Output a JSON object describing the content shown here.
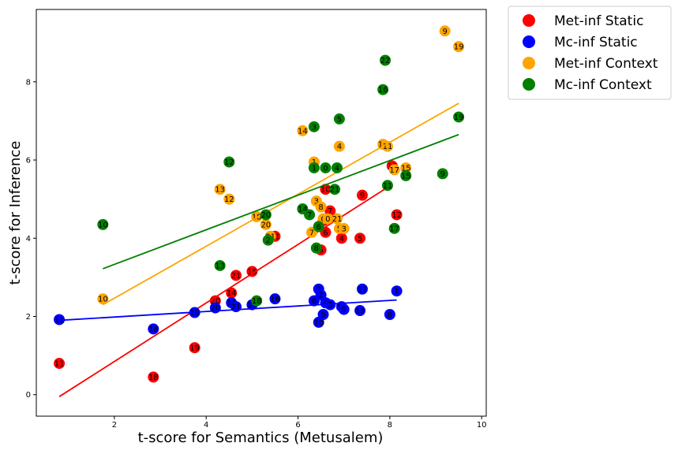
{
  "chart_data": {
    "type": "scatter",
    "xlabel": "t-score for Semantics (Metusalem)",
    "ylabel": "t-score for Inference",
    "xlim": [
      0.3,
      10.1
    ],
    "ylim": [
      -0.55,
      9.85
    ],
    "xticks": [
      2,
      4,
      6,
      8,
      10
    ],
    "yticks": [
      0,
      2,
      4,
      6,
      8
    ],
    "grid": false,
    "legend": "outside-top-right",
    "series": [
      {
        "name": "Met-inf Static",
        "color": "#ff0000",
        "points": [
          {
            "label": "11",
            "x": 0.8,
            "y": 0.8
          },
          {
            "label": "18",
            "x": 2.85,
            "y": 0.45
          },
          {
            "label": "19",
            "x": 3.75,
            "y": 1.2
          },
          {
            "label": "20",
            "x": 4.2,
            "y": 2.4
          },
          {
            "label": "14",
            "x": 4.55,
            "y": 2.6
          },
          {
            "label": "21",
            "x": 4.65,
            "y": 3.05
          },
          {
            "label": "15",
            "x": 5.0,
            "y": 3.15
          },
          {
            "label": "21",
            "x": 5.5,
            "y": 4.05
          },
          {
            "label": "6",
            "x": 6.5,
            "y": 3.7
          },
          {
            "label": "6",
            "x": 6.6,
            "y": 4.15
          },
          {
            "label": "7",
            "x": 6.7,
            "y": 4.7
          },
          {
            "label": "2",
            "x": 6.55,
            "y": 4.45
          },
          {
            "label": "4",
            "x": 6.95,
            "y": 4.0
          },
          {
            "label": "5",
            "x": 7.35,
            "y": 4.0
          },
          {
            "label": "9",
            "x": 7.4,
            "y": 5.1
          },
          {
            "label": "10",
            "x": 6.6,
            "y": 5.25
          },
          {
            "label": "16",
            "x": 8.05,
            "y": 5.85
          },
          {
            "label": "12",
            "x": 8.15,
            "y": 4.6
          }
        ],
        "trend": [
          [
            0.8,
            -0.05
          ],
          [
            7.95,
            5.3
          ]
        ]
      },
      {
        "name": "Mc-inf Static",
        "color": "#0000ff",
        "points": [
          {
            "label": "11",
            "x": 0.8,
            "y": 1.92
          },
          {
            "label": "18",
            "x": 2.85,
            "y": 1.68
          },
          {
            "label": "19",
            "x": 3.75,
            "y": 2.1
          },
          {
            "label": "20",
            "x": 4.2,
            "y": 2.22
          },
          {
            "label": "14",
            "x": 4.55,
            "y": 2.35
          },
          {
            "label": "21",
            "x": 4.65,
            "y": 2.25
          },
          {
            "label": "15",
            "x": 5.0,
            "y": 2.3
          },
          {
            "label": "16",
            "x": 5.5,
            "y": 2.45
          },
          {
            "label": "6",
            "x": 6.35,
            "y": 2.4
          },
          {
            "label": "7",
            "x": 6.45,
            "y": 2.7
          },
          {
            "label": "2",
            "x": 6.5,
            "y": 2.55
          },
          {
            "label": "4",
            "x": 6.6,
            "y": 2.35
          },
          {
            "label": "3",
            "x": 6.7,
            "y": 2.3
          },
          {
            "label": "5",
            "x": 6.55,
            "y": 2.05
          },
          {
            "label": "10",
            "x": 6.45,
            "y": 1.85
          },
          {
            "label": "12",
            "x": 6.95,
            "y": 2.25
          },
          {
            "label": "9",
            "x": 7.0,
            "y": 2.18
          },
          {
            "label": "13",
            "x": 7.35,
            "y": 2.15
          },
          {
            "label": "17",
            "x": 7.4,
            "y": 2.7
          },
          {
            "label": "8",
            "x": 8.0,
            "y": 2.05
          },
          {
            "label": "1",
            "x": 8.15,
            "y": 2.65
          }
        ],
        "trend": [
          [
            0.8,
            1.9
          ],
          [
            8.15,
            2.42
          ]
        ]
      },
      {
        "name": "Met-inf Context",
        "color": "#ffa500",
        "points": [
          {
            "label": "10",
            "x": 1.75,
            "y": 2.45
          },
          {
            "label": "13",
            "x": 4.3,
            "y": 5.25
          },
          {
            "label": "12",
            "x": 4.5,
            "y": 5.0
          },
          {
            "label": "18",
            "x": 5.1,
            "y": 4.55
          },
          {
            "label": "20",
            "x": 5.3,
            "y": 4.35
          },
          {
            "label": "21",
            "x": 5.4,
            "y": 4.05
          },
          {
            "label": "14",
            "x": 6.1,
            "y": 6.75
          },
          {
            "label": "1",
            "x": 6.35,
            "y": 5.95
          },
          {
            "label": "3",
            "x": 6.4,
            "y": 4.95
          },
          {
            "label": "8",
            "x": 6.5,
            "y": 4.8
          },
          {
            "label": "6",
            "x": 6.55,
            "y": 4.5
          },
          {
            "label": "0",
            "x": 6.65,
            "y": 4.5
          },
          {
            "label": "21",
            "x": 6.85,
            "y": 4.5
          },
          {
            "label": "7",
            "x": 6.3,
            "y": 4.15
          },
          {
            "label": "5",
            "x": 6.9,
            "y": 4.25
          },
          {
            "label": "3",
            "x": 7.0,
            "y": 4.25
          },
          {
            "label": "4",
            "x": 6.9,
            "y": 6.35
          },
          {
            "label": "16",
            "x": 7.85,
            "y": 6.4
          },
          {
            "label": "11",
            "x": 7.95,
            "y": 6.35
          },
          {
            "label": "17",
            "x": 8.1,
            "y": 5.75
          },
          {
            "label": "15",
            "x": 8.35,
            "y": 5.8
          },
          {
            "label": "9",
            "x": 9.2,
            "y": 9.3
          },
          {
            "label": "19",
            "x": 9.5,
            "y": 8.9
          }
        ],
        "trend": [
          [
            1.75,
            2.3
          ],
          [
            9.5,
            7.45
          ]
        ]
      },
      {
        "name": "Mc-inf Context",
        "color": "#008000",
        "points": [
          {
            "label": "10",
            "x": 1.75,
            "y": 4.35
          },
          {
            "label": "13",
            "x": 4.3,
            "y": 3.3
          },
          {
            "label": "12",
            "x": 4.5,
            "y": 5.95
          },
          {
            "label": "18",
            "x": 5.1,
            "y": 2.4
          },
          {
            "label": "20",
            "x": 5.3,
            "y": 4.6
          },
          {
            "label": "2",
            "x": 5.35,
            "y": 3.95
          },
          {
            "label": "14",
            "x": 6.1,
            "y": 4.75
          },
          {
            "label": "7",
            "x": 6.25,
            "y": 4.6
          },
          {
            "label": "6",
            "x": 6.45,
            "y": 4.3
          },
          {
            "label": "8",
            "x": 6.4,
            "y": 3.75
          },
          {
            "label": "3",
            "x": 6.35,
            "y": 6.85
          },
          {
            "label": "1",
            "x": 6.35,
            "y": 5.8
          },
          {
            "label": "0",
            "x": 6.6,
            "y": 5.8
          },
          {
            "label": "4",
            "x": 6.85,
            "y": 5.8
          },
          {
            "label": "5",
            "x": 6.9,
            "y": 7.05
          },
          {
            "label": "21",
            "x": 6.8,
            "y": 5.25
          },
          {
            "label": "11",
            "x": 7.95,
            "y": 5.35
          },
          {
            "label": "22",
            "x": 7.9,
            "y": 8.55
          },
          {
            "label": "16",
            "x": 7.85,
            "y": 7.8
          },
          {
            "label": "17",
            "x": 8.1,
            "y": 4.25
          },
          {
            "label": "15",
            "x": 8.35,
            "y": 5.6
          },
          {
            "label": "9",
            "x": 9.15,
            "y": 5.65
          },
          {
            "label": "19",
            "x": 9.5,
            "y": 7.1
          }
        ],
        "trend": [
          [
            1.75,
            3.22
          ],
          [
            9.5,
            6.65
          ]
        ]
      }
    ]
  }
}
